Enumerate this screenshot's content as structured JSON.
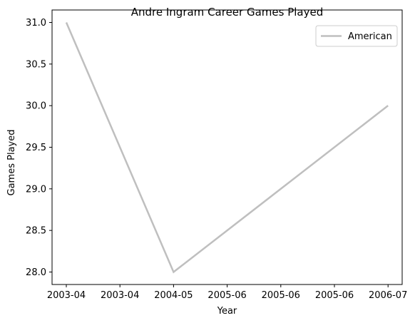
{
  "chart_data": {
    "type": "line",
    "title": "Andre Ingram Career Games Played",
    "xlabel": "Year",
    "ylabel": "Games Played",
    "x_tick_labels": [
      "2003-04",
      "2003-04",
      "2004-05",
      "2005-06",
      "2005-06",
      "2005-06",
      "2006-07"
    ],
    "y_ticks": [
      "28.0",
      "28.5",
      "29.0",
      "29.5",
      "30.0",
      "30.5",
      "31.0"
    ],
    "ylim": [
      27.85,
      31.15
    ],
    "grid": false,
    "legend_position": "top-right",
    "series": [
      {
        "name": "American",
        "color": "#bfbfbf",
        "x": [
          "2003-04",
          "2004-05",
          "2006-07"
        ],
        "y": [
          31,
          28,
          30
        ]
      }
    ]
  }
}
